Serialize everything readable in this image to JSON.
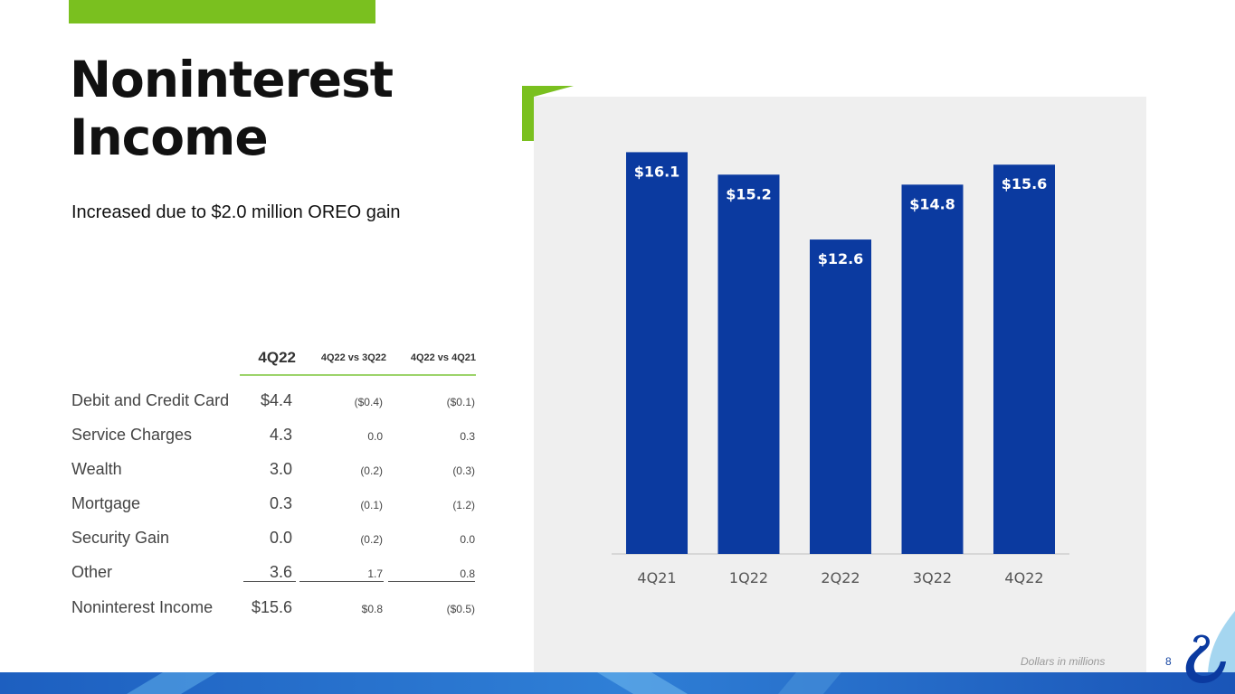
{
  "slide": {
    "title_line1": "Noninterest",
    "title_line2": "Income",
    "subtitle": "Increased due to $2.0 million OREO gain",
    "footnote": "Dollars in millions",
    "page_number": "8"
  },
  "table": {
    "headers": [
      "4Q22",
      "4Q22 vs 3Q22",
      "4Q22 vs 4Q21"
    ],
    "rows": [
      {
        "label": "Debit and Credit Card",
        "q": "$4.4",
        "vs_3q22": "($0.4)",
        "vs_4q21": "($0.1)"
      },
      {
        "label": "Service Charges",
        "q": "4.3",
        "vs_3q22": "0.0",
        "vs_4q21": "0.3"
      },
      {
        "label": "Wealth",
        "q": "3.0",
        "vs_3q22": "(0.2)",
        "vs_4q21": "(0.3)"
      },
      {
        "label": "Mortgage",
        "q": "0.3",
        "vs_3q22": "(0.1)",
        "vs_4q21": "(1.2)"
      },
      {
        "label": "Security Gain",
        "q": "0.0",
        "vs_3q22": "(0.2)",
        "vs_4q21": "0.0"
      },
      {
        "label": "Other",
        "q": "3.6",
        "vs_3q22": "1.7",
        "vs_4q21": "0.8"
      },
      {
        "label": "Noninterest Income",
        "q": "$15.6",
        "vs_3q22": "$0.8",
        "vs_4q21": "($0.5)"
      }
    ]
  },
  "chart_data": {
    "type": "bar",
    "categories": [
      "4Q21",
      "1Q22",
      "2Q22",
      "3Q22",
      "4Q22"
    ],
    "values": [
      16.1,
      15.2,
      12.6,
      14.8,
      15.6
    ],
    "data_labels": [
      "$16.1",
      "$15.2",
      "$12.6",
      "$14.8",
      "$15.6"
    ],
    "title": "",
    "xlabel": "",
    "ylabel": "",
    "ylim": [
      0,
      17.6
    ],
    "grid": false,
    "legend": "none",
    "bar_color": "#0b3aa0"
  },
  "colors": {
    "accent_green": "#7ac01f",
    "brand_blue": "#0b3aa0"
  }
}
